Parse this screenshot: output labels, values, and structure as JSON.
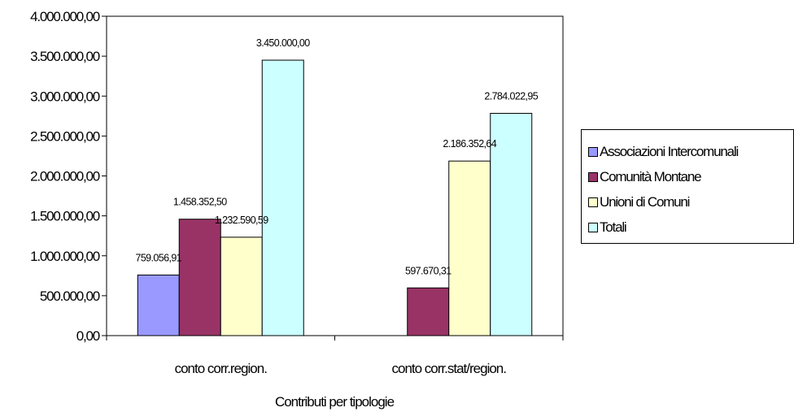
{
  "chart_data": {
    "type": "bar",
    "title": "",
    "xlabel": "Contributi per tipologie",
    "ylabel": "",
    "ylim": [
      0,
      4000000
    ],
    "y_ticks": [
      0,
      500000,
      1000000,
      1500000,
      2000000,
      2500000,
      3000000,
      3500000,
      4000000
    ],
    "y_tick_labels": [
      "0,00",
      "500.000,00",
      "1.000.000,00",
      "1.500.000,00",
      "2.000.000,00",
      "2.500.000,00",
      "3.000.000,00",
      "3.500.000,00",
      "4.000.000,00"
    ],
    "categories": [
      "conto corr.region.",
      "conto corr.stat/region."
    ],
    "grid": false,
    "legend_position": "right",
    "series": [
      {
        "name": "Associazioni Intercomunali",
        "color": "#9999ff",
        "values": [
          759056.91,
          null
        ],
        "labels": [
          "759.056,91",
          ""
        ]
      },
      {
        "name": "Comunità Montane",
        "color": "#993366",
        "values": [
          1458352.5,
          597670.31
        ],
        "labels": [
          "1.458.352,50",
          "597.670,31"
        ]
      },
      {
        "name": "Unioni di Comuni",
        "color": "#ffffcc",
        "values": [
          1232590.59,
          2186352.64
        ],
        "labels": [
          "1.232.590,59",
          "2.186.352,64"
        ]
      },
      {
        "name": "Totali",
        "color": "#ccffff",
        "values": [
          3450000.0,
          2784022.95
        ],
        "labels": [
          "3.450.000,00",
          "2.784.022,95"
        ]
      }
    ]
  }
}
